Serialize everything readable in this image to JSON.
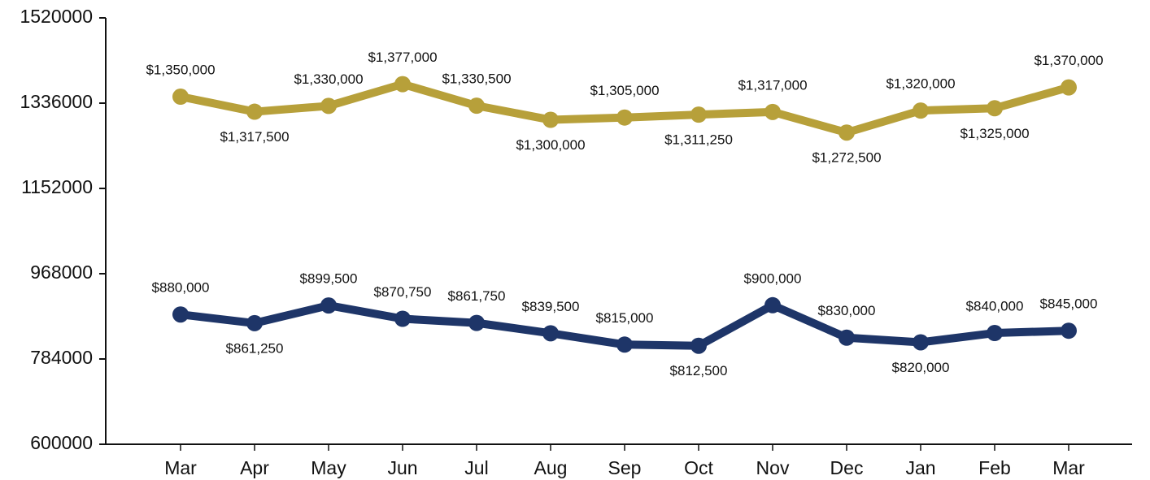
{
  "chart_data": {
    "type": "line",
    "categories": [
      "Mar",
      "Apr",
      "May",
      "Jun",
      "Jul",
      "Aug",
      "Sep",
      "Oct",
      "Nov",
      "Dec",
      "Jan",
      "Feb",
      "Mar"
    ],
    "series": [
      {
        "color": "#b7a03a",
        "values": [
          1350000,
          1317500,
          1330000,
          1377000,
          1330500,
          1300000,
          1305000,
          1311250,
          1317000,
          1272500,
          1320000,
          1325000,
          1370000
        ],
        "value_labels": [
          "$1,350,000",
          "$1,317,500",
          "$1,330,000",
          "$1,377,000",
          "$1,330,500",
          "$1,300,000",
          "$1,305,000",
          "$1,311,250",
          "$1,317,000",
          "$1,272,500",
          "$1,320,000",
          "$1,325,000",
          "$1,370,000"
        ]
      },
      {
        "color": "#1e3568",
        "values": [
          880000,
          861250,
          899500,
          870750,
          861750,
          839500,
          815000,
          812500,
          900000,
          830000,
          820000,
          840000,
          845000
        ],
        "value_labels": [
          "$880,000",
          "$861,250",
          "$899,500",
          "$870,750",
          "$861,750",
          "$839,500",
          "$815,000",
          "$812,500",
          "$900,000",
          "$830,000",
          "$820,000",
          "$840,000",
          "$845,000"
        ]
      }
    ],
    "ylim": [
      600000,
      1520000
    ],
    "yticks": [
      600000,
      784000,
      968000,
      1152000,
      1336000,
      1520000
    ],
    "grid": false
  }
}
